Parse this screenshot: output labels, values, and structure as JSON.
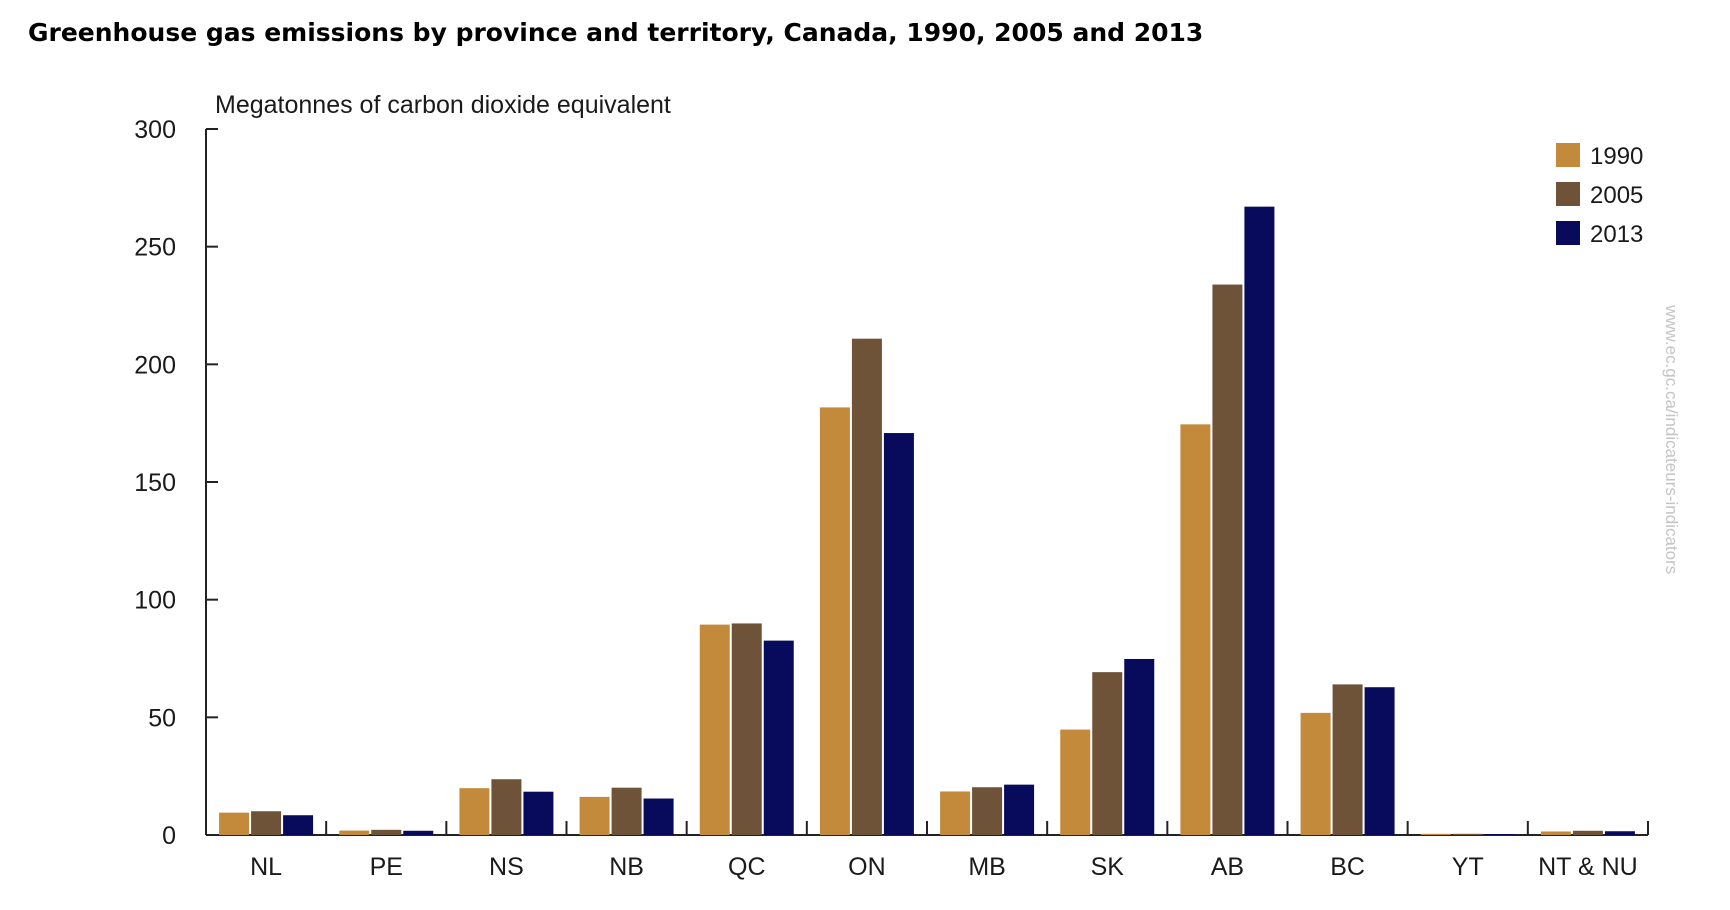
{
  "page": {
    "title": "Greenhouse gas emissions by province and territory, Canada, 1990, 2005 and 2013",
    "watermark": "www.ec.gc.ca/indicateurs-indicators"
  },
  "chart_data": {
    "type": "bar",
    "title": "Greenhouse gas emissions by province and territory, Canada, 1990, 2005 and 2013",
    "ylabel": "Megatonnes of carbon dioxide equivalent",
    "xlabel": "",
    "ylim": [
      0,
      300
    ],
    "yticks": [
      0,
      50,
      100,
      150,
      200,
      250,
      300
    ],
    "grid": false,
    "legend_position": "top-right",
    "categories": [
      "NL",
      "PE",
      "NS",
      "NB",
      "QC",
      "ON",
      "MB",
      "SK",
      "AB",
      "BC",
      "YT",
      "NT & NU"
    ],
    "series": [
      {
        "name": "1990",
        "color": "#c48a3c",
        "values": [
          9.5,
          1.9,
          19.9,
          16.2,
          89.4,
          181.7,
          18.5,
          44.8,
          174.5,
          51.9,
          0.5,
          1.5
        ]
      },
      {
        "name": "2005",
        "color": "#6e5339",
        "values": [
          10.1,
          2.2,
          23.7,
          20.1,
          89.9,
          210.9,
          20.3,
          69.2,
          233.9,
          64.0,
          0.5,
          1.8
        ]
      },
      {
        "name": "2013",
        "color": "#080a5c",
        "values": [
          8.4,
          1.8,
          18.4,
          15.5,
          82.6,
          170.8,
          21.4,
          74.8,
          267.0,
          62.8,
          0.4,
          1.6
        ]
      }
    ]
  }
}
